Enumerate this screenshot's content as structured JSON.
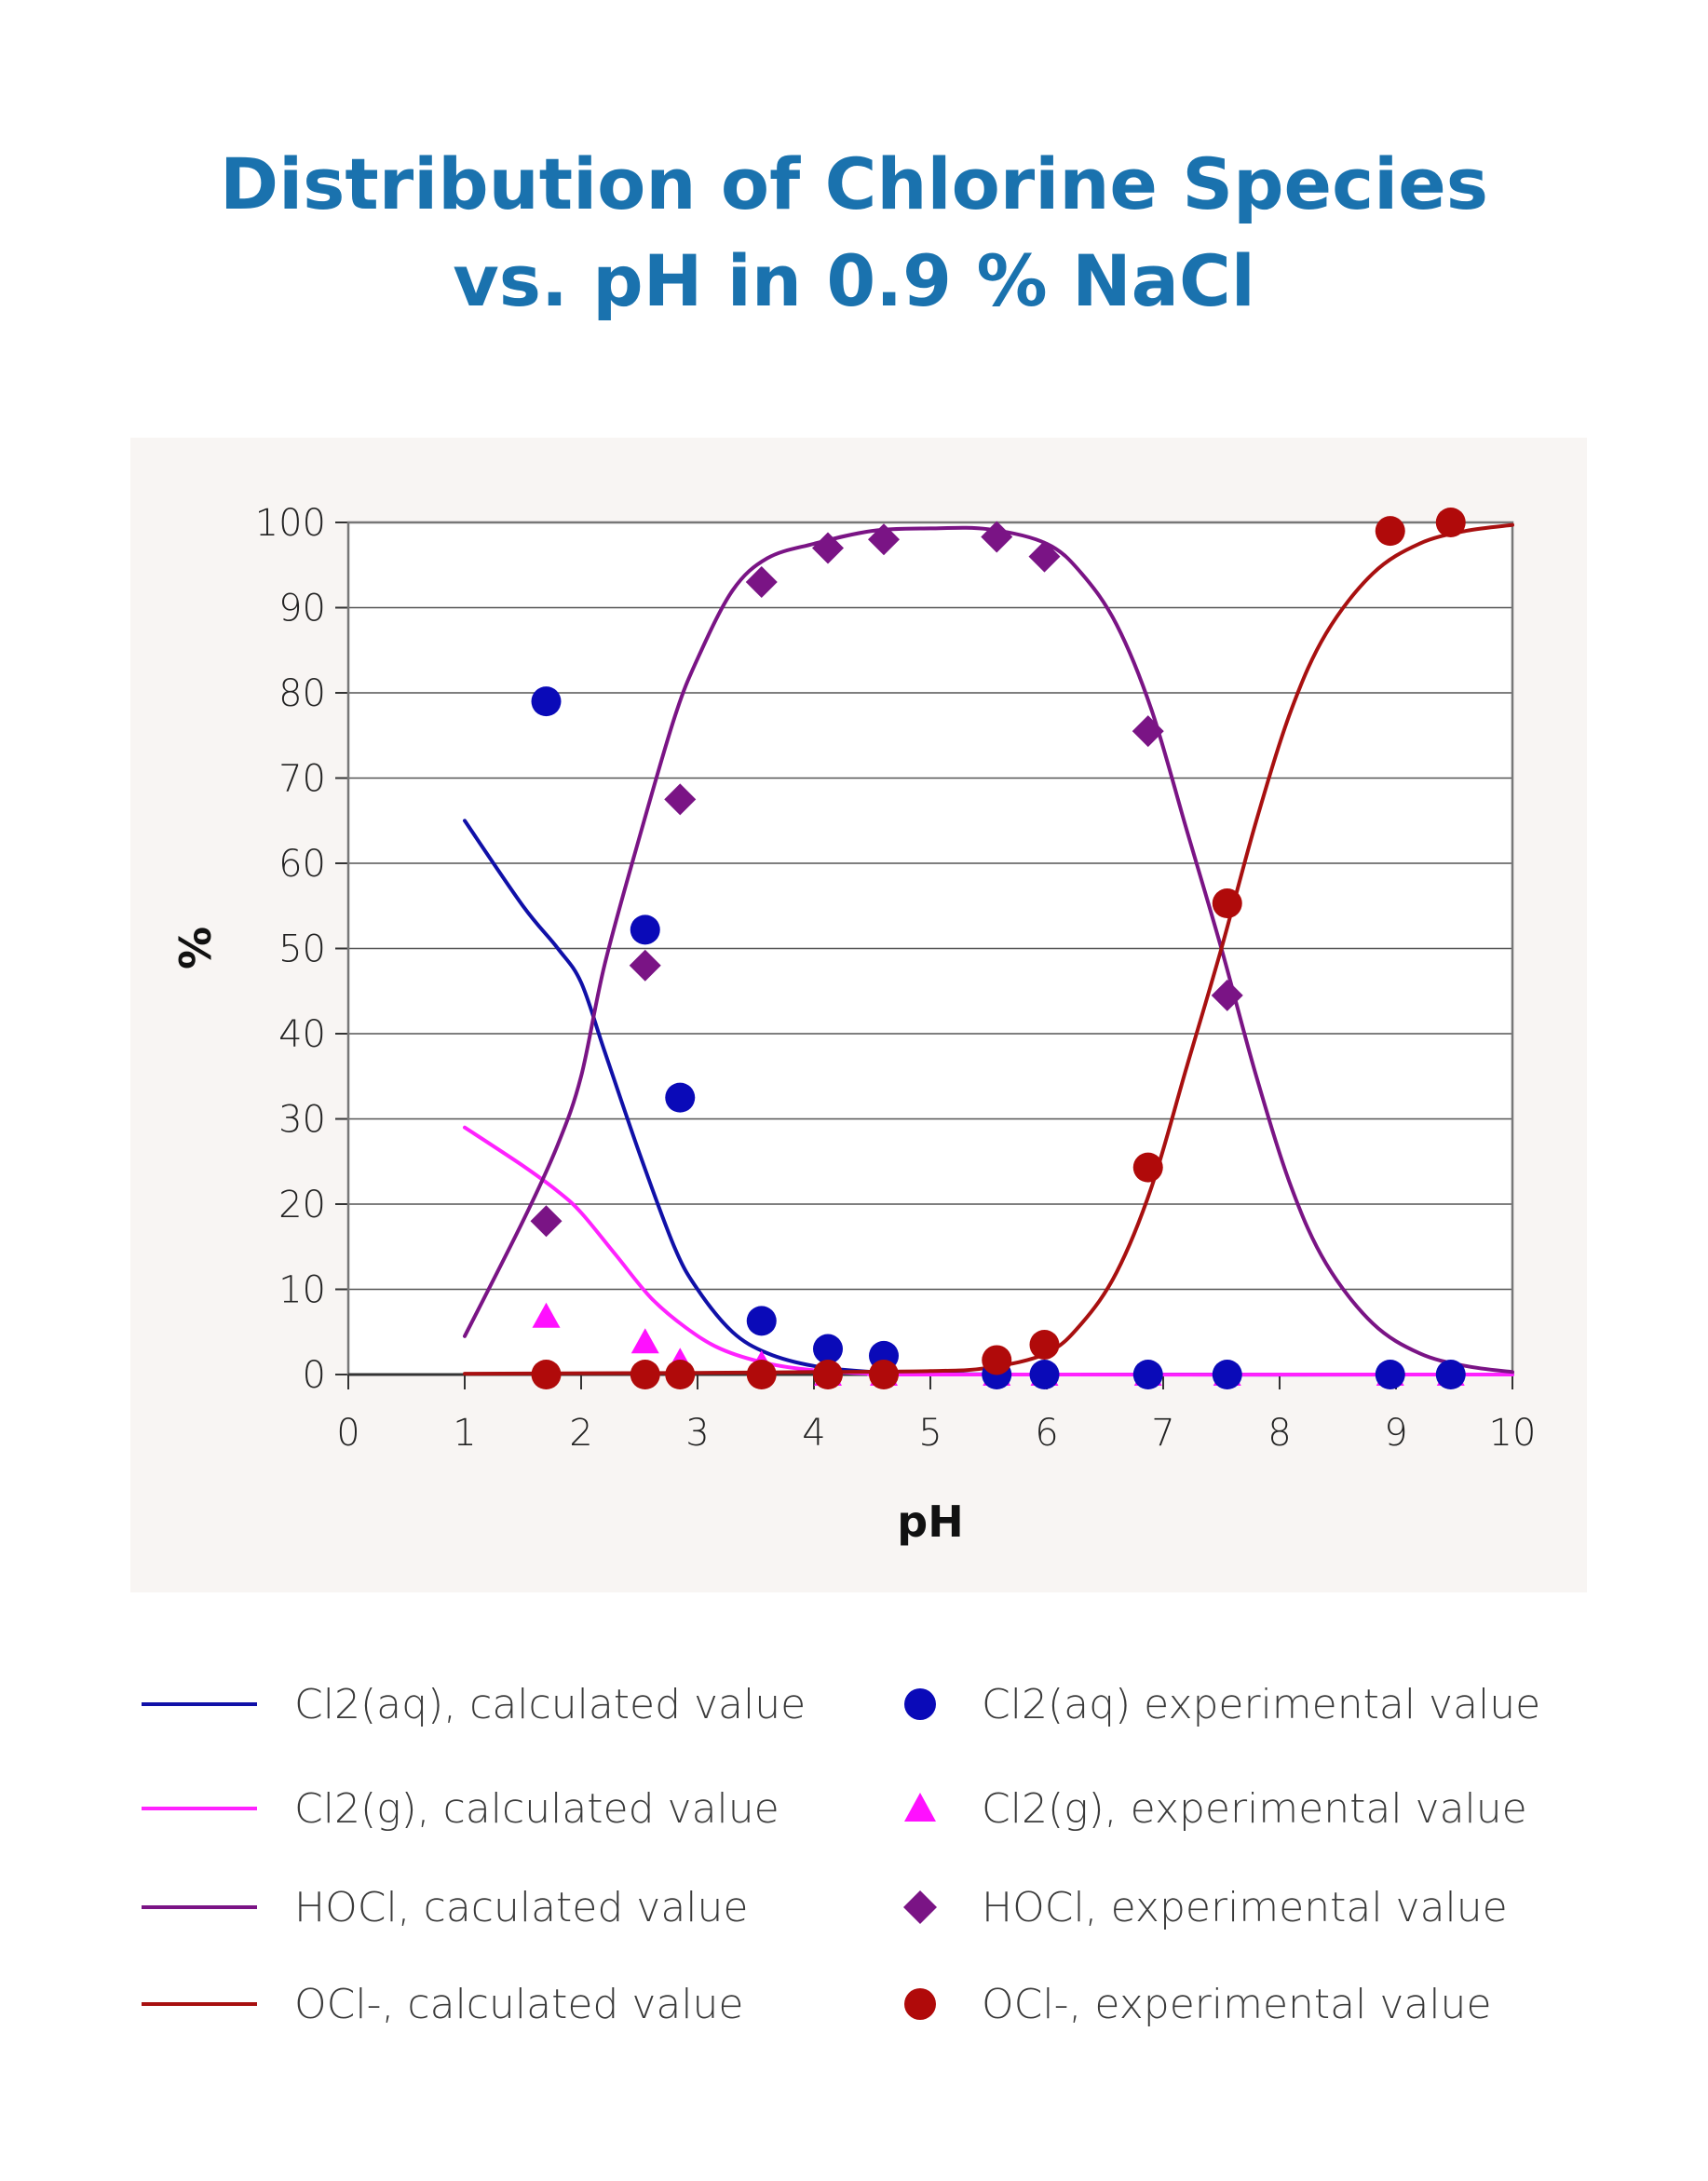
{
  "title": {
    "line1": "Distribution of Chlorine Species",
    "line2": "vs. pH in 0.9 % NaCl",
    "color": "#1a72ae"
  },
  "chart_data": {
    "type": "line",
    "title": "Distribution of Chlorine Species vs. pH in 0.9 % NaCl",
    "xlabel": "pH",
    "ylabel": "%",
    "xlim": [
      0,
      10
    ],
    "ylim": [
      0,
      100
    ],
    "xticks": [
      0,
      1,
      2,
      3,
      4,
      5,
      6,
      7,
      8,
      9,
      10
    ],
    "yticks": [
      0,
      10,
      20,
      30,
      40,
      50,
      60,
      70,
      80,
      90,
      100
    ],
    "grid": "horizontal",
    "plot_background": "#ffffff",
    "panel_background": "#f8f5f3",
    "series": [
      {
        "name": "Cl2(aq), calculated value",
        "kind": "line",
        "color": "#1010a8",
        "points": [
          [
            1,
            65
          ],
          [
            1.5,
            55
          ],
          [
            1.8,
            50
          ],
          [
            2,
            46
          ],
          [
            2.2,
            38
          ],
          [
            2.5,
            26
          ],
          [
            2.8,
            15
          ],
          [
            3,
            10
          ],
          [
            3.3,
            5
          ],
          [
            3.6,
            2.5
          ],
          [
            4,
            1
          ],
          [
            4.5,
            0.3
          ],
          [
            5,
            0.1
          ],
          [
            6,
            0
          ],
          [
            10,
            0
          ]
        ]
      },
      {
        "name": "Cl2(g), calculated value",
        "kind": "line",
        "color": "#ff22ff",
        "points": [
          [
            1,
            29
          ],
          [
            1.5,
            24.5
          ],
          [
            1.8,
            21.5
          ],
          [
            2,
            19
          ],
          [
            2.3,
            14
          ],
          [
            2.6,
            9
          ],
          [
            2.9,
            5.5
          ],
          [
            3.2,
            3
          ],
          [
            3.6,
            1.3
          ],
          [
            4,
            0.5
          ],
          [
            4.5,
            0.1
          ],
          [
            5,
            0
          ],
          [
            10,
            0
          ]
        ]
      },
      {
        "name": "HOCl, caculated value",
        "kind": "line",
        "color": "#7a1485",
        "points": [
          [
            1,
            4.5
          ],
          [
            1.5,
            18
          ],
          [
            1.8,
            27
          ],
          [
            2,
            35
          ],
          [
            2.2,
            48
          ],
          [
            2.5,
            63
          ],
          [
            2.8,
            77
          ],
          [
            3,
            84
          ],
          [
            3.3,
            92
          ],
          [
            3.6,
            95.8
          ],
          [
            4,
            97.5
          ],
          [
            4.5,
            99
          ],
          [
            5,
            99.3
          ],
          [
            5.5,
            99.2
          ],
          [
            6,
            97.5
          ],
          [
            6.3,
            94
          ],
          [
            6.6,
            88
          ],
          [
            6.9,
            78
          ],
          [
            7.2,
            64
          ],
          [
            7.5,
            50
          ],
          [
            7.8,
            35
          ],
          [
            8.1,
            22
          ],
          [
            8.4,
            13
          ],
          [
            8.8,
            6
          ],
          [
            9.2,
            2.5
          ],
          [
            9.6,
            1
          ],
          [
            10,
            0.3
          ]
        ]
      },
      {
        "name": "OCl-, calculated value",
        "kind": "line",
        "color": "#a81010",
        "points": [
          [
            1,
            0.1
          ],
          [
            3,
            0.2
          ],
          [
            4,
            0.3
          ],
          [
            5,
            0.4
          ],
          [
            5.5,
            0.8
          ],
          [
            6,
            2.5
          ],
          [
            6.3,
            6
          ],
          [
            6.6,
            12
          ],
          [
            6.9,
            22
          ],
          [
            7.2,
            36
          ],
          [
            7.5,
            50
          ],
          [
            7.8,
            65
          ],
          [
            8.1,
            78
          ],
          [
            8.4,
            87
          ],
          [
            8.8,
            94
          ],
          [
            9.2,
            97.5
          ],
          [
            9.6,
            99
          ],
          [
            10,
            99.7
          ]
        ]
      },
      {
        "name": "Cl2(aq) experimental value",
        "kind": "scatter",
        "marker": "circle",
        "color": "#0a0ab8",
        "points": [
          [
            1.7,
            79
          ],
          [
            2.55,
            52.2
          ],
          [
            2.85,
            32.5
          ],
          [
            3.55,
            6.3
          ],
          [
            4.12,
            3
          ],
          [
            4.6,
            2.2
          ],
          [
            5.57,
            0
          ],
          [
            5.98,
            0
          ],
          [
            6.87,
            0
          ],
          [
            7.55,
            0
          ],
          [
            8.95,
            0
          ],
          [
            9.47,
            0
          ]
        ]
      },
      {
        "name": "Cl2(g), experimental value",
        "kind": "scatter",
        "marker": "triangle",
        "color": "#ff10ff",
        "points": [
          [
            1.7,
            6.8
          ],
          [
            2.55,
            3.8
          ],
          [
            2.85,
            1.5
          ],
          [
            3.55,
            1.2
          ],
          [
            4.12,
            0
          ],
          [
            4.6,
            0
          ],
          [
            5.57,
            0
          ],
          [
            5.98,
            0
          ],
          [
            6.87,
            0
          ],
          [
            7.55,
            0
          ],
          [
            8.95,
            0
          ],
          [
            9.47,
            0
          ]
        ]
      },
      {
        "name": "HOCl, experimental value",
        "kind": "scatter",
        "marker": "diamond",
        "color": "#7a1485",
        "points": [
          [
            1.7,
            18
          ],
          [
            2.55,
            48
          ],
          [
            2.85,
            67.5
          ],
          [
            3.55,
            93
          ],
          [
            4.12,
            97
          ],
          [
            4.6,
            98
          ],
          [
            5.57,
            98.3
          ],
          [
            5.98,
            96
          ],
          [
            6.87,
            75.5
          ],
          [
            7.55,
            44.5
          ]
        ]
      },
      {
        "name": "OCl-, experimental value",
        "kind": "scatter",
        "marker": "circle",
        "color": "#b00a0a",
        "points": [
          [
            1.7,
            0
          ],
          [
            2.55,
            0
          ],
          [
            2.85,
            0
          ],
          [
            3.55,
            0
          ],
          [
            4.12,
            0
          ],
          [
            4.6,
            0
          ],
          [
            5.57,
            1.7
          ],
          [
            5.98,
            3.5
          ],
          [
            6.87,
            24.3
          ],
          [
            7.55,
            55.3
          ],
          [
            8.95,
            99
          ],
          [
            9.47,
            100
          ]
        ]
      }
    ]
  },
  "legend": {
    "left": [
      {
        "label": "Cl2(aq), calculated value",
        "color": "#1010a8",
        "kind": "line"
      },
      {
        "label": "Cl2(g), calculated value",
        "color": "#ff22ff",
        "kind": "line"
      },
      {
        "label": "HOCl, caculated value",
        "color": "#7a1485",
        "kind": "line"
      },
      {
        "label": "OCl-, calculated value",
        "color": "#a81010",
        "kind": "line"
      }
    ],
    "right": [
      {
        "label": "Cl2(aq) experimental value",
        "color": "#0a0ab8",
        "marker": "circle"
      },
      {
        "label": "Cl2(g), experimental value",
        "color": "#ff10ff",
        "marker": "triangle"
      },
      {
        "label": "HOCl, experimental value",
        "color": "#7a1485",
        "marker": "diamond"
      },
      {
        "label": "OCl-, experimental value",
        "color": "#b00a0a",
        "marker": "circle"
      }
    ]
  }
}
